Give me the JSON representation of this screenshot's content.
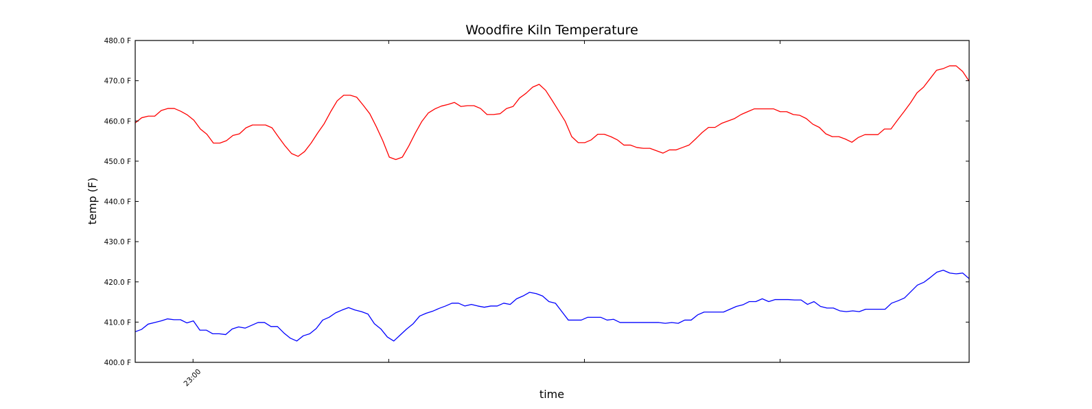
{
  "chart_data": {
    "type": "line",
    "title": "Woodfire Kiln Temperature",
    "xlabel": "time",
    "ylabel": "temp (F)",
    "ylim": [
      400,
      480
    ],
    "yticks": [
      "400.0 F",
      "410.0 F",
      "420.0 F",
      "430.0 F",
      "440.0 F",
      "450.0 F",
      "460.0 F",
      "470.0 F",
      "480.0 F"
    ],
    "xlim": [
      0,
      150
    ],
    "xticks": [
      {
        "x": 10.4,
        "label": "23:00"
      },
      {
        "x": 45.6,
        "label": ""
      },
      {
        "x": 80.8,
        "label": ""
      },
      {
        "x": 116.0,
        "label": ""
      }
    ],
    "grid": false,
    "series": [
      {
        "color": "#ff0000",
        "values": [
          459.5,
          460.8,
          461.2,
          461.2,
          462.6,
          463.1,
          463.1,
          462.4,
          461.5,
          460.2,
          458.0,
          456.7,
          454.5,
          454.5,
          455.1,
          456.4,
          456.8,
          458.3,
          459.0,
          459.0,
          459.0,
          458.3,
          456.0,
          453.8,
          451.9,
          451.2,
          452.4,
          454.5,
          457.0,
          459.3,
          462.3,
          465.0,
          466.4,
          466.4,
          465.9,
          463.9,
          461.8,
          458.6,
          455.1,
          451.0,
          450.4,
          451.0,
          453.8,
          457.0,
          459.9,
          462.0,
          463.0,
          463.7,
          464.1,
          464.6,
          463.6,
          463.8,
          463.8,
          463.1,
          461.6,
          461.6,
          461.8,
          463.1,
          463.6,
          465.7,
          466.9,
          468.4,
          469.1,
          467.6,
          465.1,
          462.5,
          459.9,
          456.1,
          454.6,
          454.6,
          455.3,
          456.7,
          456.7,
          456.1,
          455.3,
          454.0,
          454.0,
          453.4,
          453.2,
          453.2,
          452.6,
          452.0,
          452.8,
          452.8,
          453.4,
          454.0,
          455.5,
          457.1,
          458.4,
          458.4,
          459.4,
          460.0,
          460.6,
          461.6,
          462.3,
          463.0,
          463.0,
          463.0,
          463.0,
          462.3,
          462.3,
          461.6,
          461.4,
          460.6,
          459.2,
          458.4,
          456.8,
          456.1,
          456.1,
          455.5,
          454.7,
          455.9,
          456.6,
          456.6,
          456.6,
          458.0,
          458.0,
          460.2,
          462.3,
          464.5,
          467.0,
          468.4,
          470.5,
          472.6,
          473.0,
          473.7,
          473.7,
          472.3,
          469.9
        ]
      },
      {
        "color": "#0000ff",
        "values": [
          407.6,
          408.2,
          409.5,
          409.9,
          410.3,
          410.8,
          410.6,
          410.6,
          409.8,
          410.3,
          408.0,
          408.0,
          407.1,
          407.1,
          406.9,
          408.3,
          408.8,
          408.5,
          409.2,
          409.9,
          409.9,
          408.9,
          408.9,
          407.3,
          406.0,
          405.3,
          406.6,
          407.1,
          408.4,
          410.5,
          411.2,
          412.3,
          413.0,
          413.6,
          413.0,
          412.6,
          412.0,
          409.6,
          408.3,
          406.3,
          405.3,
          406.8,
          408.3,
          409.6,
          411.5,
          412.2,
          412.7,
          413.4,
          414.0,
          414.7,
          414.7,
          414.0,
          414.4,
          414.0,
          413.7,
          414.0,
          414.0,
          414.7,
          414.4,
          415.8,
          416.5,
          417.4,
          417.1,
          416.5,
          415.1,
          414.7,
          412.6,
          410.5,
          410.5,
          410.5,
          411.2,
          411.2,
          411.2,
          410.5,
          410.7,
          409.9,
          409.9,
          409.9,
          409.9,
          409.9,
          409.9,
          409.9,
          409.7,
          409.9,
          409.7,
          410.5,
          410.5,
          411.8,
          412.5,
          412.5,
          412.5,
          412.5,
          413.2,
          413.9,
          414.3,
          415.1,
          415.1,
          415.8,
          415.1,
          415.6,
          415.6,
          415.6,
          415.5,
          415.5,
          414.4,
          415.1,
          413.9,
          413.5,
          413.5,
          412.8,
          412.6,
          412.8,
          412.6,
          413.2,
          413.2,
          413.2,
          413.2,
          414.7,
          415.3,
          416.0,
          417.6,
          419.2,
          419.9,
          421.1,
          422.4,
          422.9,
          422.2,
          422.0,
          422.2,
          420.8
        ]
      }
    ]
  }
}
